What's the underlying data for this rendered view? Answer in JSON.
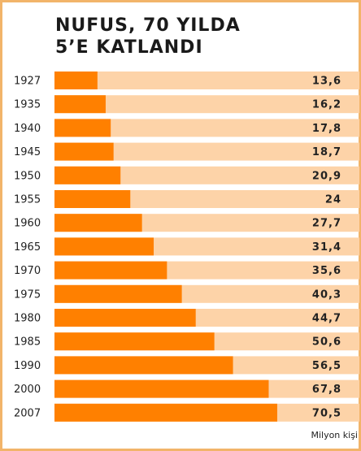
{
  "chart_data": {
    "type": "bar",
    "orientation": "horizontal",
    "title": [
      "NUFUS, 70 YILDA",
      "5’E KATLANDI"
    ],
    "unit_label": "Milyon kişi",
    "categories": [
      "1927",
      "1935",
      "1940",
      "1945",
      "1950",
      "1955",
      "1960",
      "1965",
      "1970",
      "1975",
      "1980",
      "1985",
      "1990",
      "2000",
      "2007"
    ],
    "values": [
      13.6,
      16.2,
      17.8,
      18.7,
      20.9,
      24,
      27.7,
      31.4,
      35.6,
      40.3,
      44.7,
      50.6,
      56.5,
      67.8,
      70.5
    ],
    "value_labels": [
      "13,6",
      "16,2",
      "17,8",
      "18,7",
      "20,9",
      "24",
      "27,7",
      "31,4",
      "35,6",
      "40,3",
      "44,7",
      "50,6",
      "56,5",
      "67,8",
      "70,5"
    ],
    "color": "#ff8000",
    "track_color": "#fdd3a8",
    "xlim": [
      0,
      96.5
    ]
  }
}
